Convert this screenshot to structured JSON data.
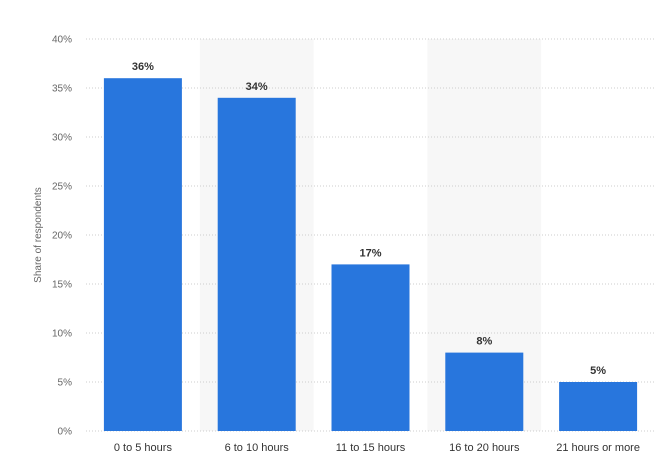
{
  "chart_data": {
    "type": "bar",
    "categories": [
      "0 to 5 hours",
      "6 to 10 hours",
      "11 to 15 hours",
      "16 to 20 hours",
      "21 hours or more"
    ],
    "values": [
      36,
      34,
      17,
      8,
      5
    ],
    "data_labels": [
      "36%",
      "34%",
      "17%",
      "8%",
      "5%"
    ],
    "title": "",
    "xlabel": "",
    "ylabel": "Share of respondents",
    "ylim": [
      0,
      40
    ],
    "yticks": [
      0,
      5,
      10,
      15,
      20,
      25,
      30,
      35,
      40
    ],
    "ytick_labels": [
      "0%",
      "5%",
      "10%",
      "15%",
      "20%",
      "25%",
      "30%",
      "35%",
      "40%"
    ],
    "grid": true,
    "legend": "none",
    "colors": {
      "bar": "#2876dd",
      "band": "#f7f7f7",
      "grid": "#cccccc"
    }
  }
}
